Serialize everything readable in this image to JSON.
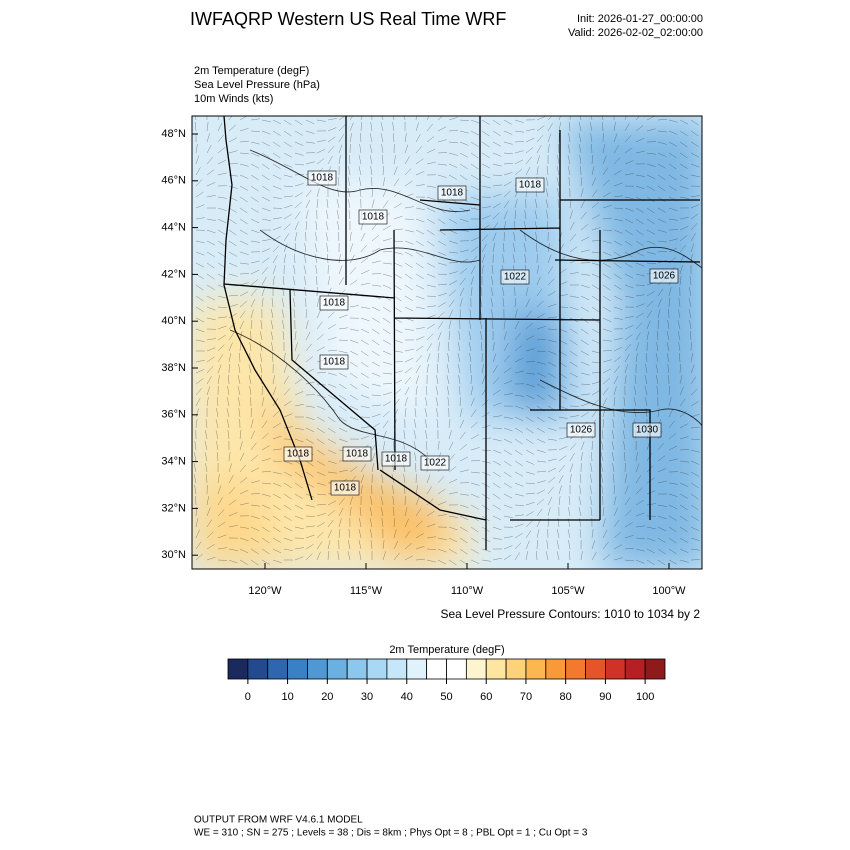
{
  "header": {
    "title": "IWFAQRP Western US Real Time WRF",
    "init": "Init: 2026-01-27_00:00:00",
    "valid": "Valid: 2026-02-02_02:00:00"
  },
  "fields": [
    "2m Temperature   (degF)",
    "Sea Level Pressure   (hPa)",
    "10m Winds   (kts)"
  ],
  "map": {
    "lat_labels": [
      "48°N",
      "46°N",
      "44°N",
      "42°N",
      "40°N",
      "38°N",
      "36°N",
      "34°N",
      "32°N",
      "30°N"
    ],
    "lon_labels": [
      "120°W",
      "115°W",
      "110°W",
      "105°W",
      "100°W"
    ],
    "contour_labels": [
      "1018",
      "1018",
      "1018",
      "1018",
      "1022",
      "1018",
      "1018",
      "1026",
      "1026",
      "1030",
      "1018",
      "1018",
      "1018",
      "1022",
      "1018"
    ],
    "contour_note": "Sea Level Pressure Contours: 1010 to 1034 by 2"
  },
  "colorbar": {
    "title": "2m Temperature  (degF)",
    "colors": [
      "#1a2a5e",
      "#234a8f",
      "#2e67b0",
      "#3a80c4",
      "#4f98d3",
      "#6ab0e0",
      "#8cc7ee",
      "#a9d8f4",
      "#c6e7f9",
      "#e0f2fc",
      "#ffffff",
      "#ffffff",
      "#fff4d0",
      "#ffe6a0",
      "#fdd27a",
      "#fcb750",
      "#f99a3a",
      "#f27a2f",
      "#e4552a",
      "#cf3226",
      "#b42023",
      "#8f1a1c"
    ],
    "ticks": [
      0,
      10,
      20,
      30,
      40,
      50,
      60,
      70,
      80,
      90,
      100
    ]
  },
  "footer": {
    "line1": "OUTPUT FROM WRF V4.6.1 MODEL",
    "line2": "WE = 310 ; SN = 275 ; Levels = 38 ; Dis = 8km ; Phys Opt = 8 ; PBL Opt = 1 ; Cu Opt = 3"
  }
}
